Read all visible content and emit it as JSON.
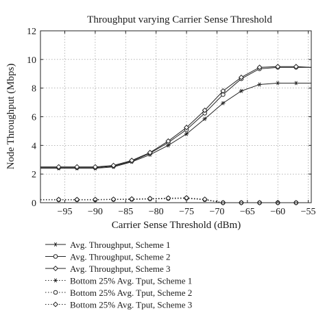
{
  "chart_data": {
    "type": "line",
    "title": "Throughput varying Carrier Sense Threshold",
    "xlabel": "Carrier Sense Threshold (dBm)",
    "ylabel": "Node Throughput (Mbps)",
    "xlim": [
      -99,
      -54.5
    ],
    "ylim": [
      0,
      12
    ],
    "xticks": [
      -95,
      -90,
      -85,
      -80,
      -75,
      -70,
      -65,
      -60,
      -55
    ],
    "yticks": [
      0,
      2,
      4,
      6,
      8,
      10,
      12
    ],
    "x": [
      -99,
      -96,
      -93,
      -90,
      -87,
      -84,
      -81,
      -78,
      -75,
      -72,
      -69,
      -66,
      -63,
      -60,
      -57,
      -54.5
    ],
    "grid": "dotted",
    "legend_position": "below",
    "series": [
      {
        "name": "Avg. Throughput, Scheme 1",
        "marker": "asterisk",
        "line": "solid",
        "values": [
          2.4,
          2.4,
          2.4,
          2.4,
          2.5,
          2.85,
          3.35,
          4.0,
          4.8,
          5.85,
          6.95,
          7.8,
          8.25,
          8.35,
          8.35,
          8.35
        ]
      },
      {
        "name": "Avg. Throughput, Scheme 2",
        "marker": "circle",
        "line": "solid",
        "values": [
          2.45,
          2.45,
          2.45,
          2.45,
          2.55,
          2.9,
          3.45,
          4.2,
          5.1,
          6.25,
          7.55,
          8.65,
          9.35,
          9.45,
          9.45,
          9.45
        ]
      },
      {
        "name": "Avg. Throughput, Scheme 3",
        "marker": "diamond",
        "line": "solid",
        "values": [
          2.5,
          2.5,
          2.5,
          2.5,
          2.6,
          2.95,
          3.5,
          4.3,
          5.25,
          6.45,
          7.8,
          8.75,
          9.45,
          9.5,
          9.5,
          9.45
        ]
      },
      {
        "name": "Bottom 25% Avg. Tput, Scheme 1",
        "marker": "asterisk",
        "line": "dotted",
        "values": [
          0.2,
          0.2,
          0.2,
          0.2,
          0.22,
          0.22,
          0.25,
          0.28,
          0.3,
          0.2,
          0.0,
          0.0,
          0.0,
          0.0,
          0.0,
          0.0
        ]
      },
      {
        "name": "Bottom 25% Avg. Tput, Scheme 2",
        "marker": "circle",
        "line": "dotted",
        "values": [
          0.2,
          0.2,
          0.2,
          0.2,
          0.22,
          0.24,
          0.27,
          0.3,
          0.32,
          0.22,
          0.0,
          0.0,
          0.0,
          0.0,
          0.0,
          0.0
        ]
      },
      {
        "name": "Bottom 25% Avg. Tput, Scheme 3",
        "marker": "diamond",
        "line": "dotted",
        "values": [
          0.22,
          0.22,
          0.22,
          0.22,
          0.24,
          0.26,
          0.29,
          0.32,
          0.34,
          0.24,
          0.0,
          0.0,
          0.0,
          0.0,
          0.0,
          0.0
        ]
      }
    ]
  }
}
